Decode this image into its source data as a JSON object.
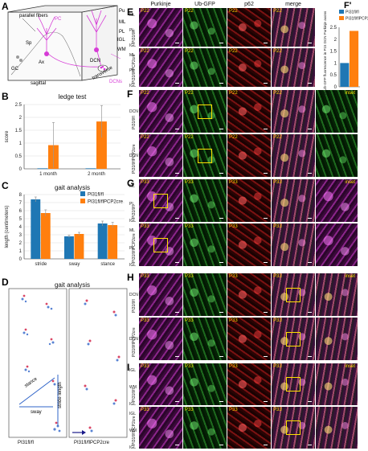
{
  "panels": {
    "A": {
      "letter": "A",
      "labels": [
        "parallel fibers",
        "PC",
        "Sp",
        "Ax",
        "Pu",
        "ML",
        "PL",
        "IGL",
        "WM",
        "GC",
        "DCN",
        "sagittal",
        "transverse",
        "DCNs"
      ]
    },
    "B": {
      "letter": "B",
      "title": "ledge test"
    },
    "C": {
      "letter": "C",
      "title": "gait analysis",
      "legend": [
        "PI31fl/fl",
        "PI31fl/flPCP2cre"
      ]
    },
    "D": {
      "letter": "D",
      "title": "gait analysis",
      "labels": [
        "stance",
        "sway",
        "stride length"
      ],
      "captions": [
        "PI31fl/fl",
        "PI31fl/flPCP2cre"
      ]
    },
    "E": {
      "letter": "E"
    },
    "F": {
      "letter": "F"
    },
    "F2": {
      "letter": "F'",
      "legend": [
        "PI31fl/fl",
        "PI31fl/flPCP2cre"
      ],
      "ylabel": "Relative Ub-GFP fluorescence in P15 DCN Purkinje axons"
    },
    "G": {
      "letter": "G"
    },
    "H": {
      "letter": "H"
    },
    "I": {
      "letter": "I"
    }
  },
  "columns": [
    "Purkinje",
    "Ub-GFP",
    "p62",
    "merge"
  ],
  "inset_label": "inset",
  "rows": {
    "E1": {
      "age": "P22",
      "genotype": "PI31fl/fl",
      "layers": [
        "ML",
        "PL",
        "IGL"
      ]
    },
    "E2": {
      "age": "P22",
      "genotype": "PI31fl/flPCP2cre",
      "layers": [
        "ML",
        "PL",
        "IGL"
      ]
    },
    "F1": {
      "age": "P22",
      "genotype": "PI31fl/fl",
      "region": "DCN"
    },
    "F2": {
      "age": "P22",
      "genotype": "PI31fl/flPCP2cre",
      "region": "DCN"
    },
    "G1": {
      "age": "P33",
      "genotype": "PI31fl/fl",
      "layers": [
        "ML",
        "PL",
        "IGL"
      ]
    },
    "G2": {
      "age": "P33",
      "genotype": "PI31fl/flPCP2cre",
      "layers": [
        "ML",
        "PL",
        "IGL"
      ]
    },
    "H1": {
      "age": "P33",
      "genotype": "PI31fl/fl",
      "region": "DCN"
    },
    "H2": {
      "age": "P33",
      "genotype": "PI31fl/flPCP2cre",
      "region": "DCN"
    },
    "I1": {
      "age": "P33",
      "genotype": "PI31fl/fl",
      "layers": [
        "IGL",
        "WM",
        "IGL"
      ]
    },
    "I2": {
      "age": "P33",
      "genotype": "PI31fl/flPCP2cre",
      "layers": [
        "IGL",
        "WM",
        "IGL"
      ]
    }
  },
  "chart_data": [
    {
      "type": "bar",
      "title": "ledge test",
      "categories": [
        "1 month",
        "2 month"
      ],
      "series": [
        {
          "name": "PI31fl/fl",
          "values": [
            0.02,
            0.02
          ],
          "color": "#1f77b4"
        },
        {
          "name": "PI31fl/flPCP2cre",
          "values": [
            0.92,
            1.84
          ],
          "color": "#ff7f0e"
        }
      ],
      "errors": [
        [
          0,
          0
        ],
        [
          0.88,
          0.62
        ]
      ],
      "ylabel": "score",
      "ylim": [
        0,
        2.5
      ],
      "yticks": [
        0,
        0.5,
        1,
        1.5,
        2,
        2.5
      ],
      "grid": true
    },
    {
      "type": "bar",
      "title": "gait analysis",
      "categories": [
        "stride",
        "sway",
        "stance"
      ],
      "series": [
        {
          "name": "PI31fl/fl",
          "values": [
            7.4,
            2.8,
            4.4
          ],
          "color": "#1f77b4"
        },
        {
          "name": "PI31fl/flPCP2cre",
          "values": [
            5.7,
            3.1,
            4.2
          ],
          "color": "#ff7f0e"
        }
      ],
      "errors": [
        [
          0.3,
          0.15,
          0.3
        ],
        [
          0.4,
          0.2,
          0.35
        ]
      ],
      "ylabel": "length (centimeters)",
      "ylim": [
        0,
        8
      ],
      "yticks": [
        0,
        1,
        2,
        3,
        4,
        5,
        6,
        7,
        8
      ],
      "legend": "top-right",
      "grid": true
    },
    {
      "type": "bar",
      "categories": [
        ""
      ],
      "series": [
        {
          "name": "PI31fl/fl",
          "values": [
            1.0
          ],
          "color": "#1f77b4"
        },
        {
          "name": "PI31fl/flPCP2cre",
          "values": [
            2.35
          ],
          "color": "#ff7f0e"
        }
      ],
      "ylabel": "Relative Ub-GFP fluorescence in P15 DCN Purkinje axons",
      "ylim": [
        0,
        2.5
      ],
      "yticks": [
        0,
        0.5,
        1,
        1.5,
        2,
        2.5
      ],
      "legend": "top"
    }
  ]
}
